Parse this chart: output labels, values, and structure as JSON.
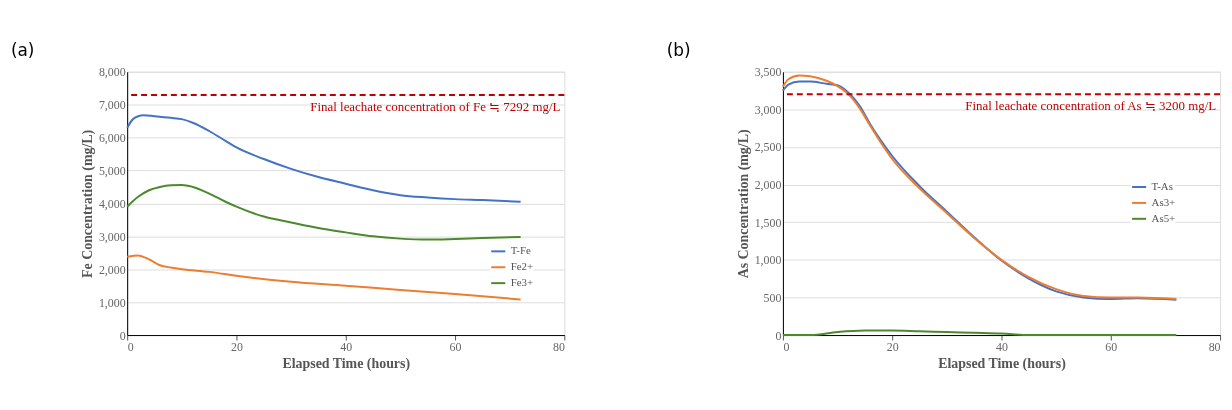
{
  "chart_data": [
    {
      "type": "line",
      "title": "(a)",
      "xlabel": "Elapsed Time (hours)",
      "ylabel": "Fe Concentration (mg/L)",
      "xlim": [
        0,
        80
      ],
      "xticks": [
        0,
        20,
        40,
        60,
        80
      ],
      "ylim": [
        0,
        8000
      ],
      "yticks": [
        0,
        {
          "value": 1000,
          "label": "1,000"
        },
        {
          "value": 2000,
          "label": "2,000"
        },
        {
          "value": 3000,
          "label": "3,000"
        },
        {
          "value": 4000,
          "label": "4,000"
        },
        {
          "value": 5000,
          "label": "5,000"
        },
        {
          "value": 6000,
          "label": "6,000"
        },
        {
          "value": 7000,
          "label": "7,000"
        },
        {
          "value": 8000,
          "label": "8,000"
        }
      ],
      "grid": "y",
      "legend": "bottom right",
      "marker": "none",
      "line_style": "solid",
      "ref_lines": [
        {
          "axis": "y",
          "value": 7292,
          "label": "Final leachate concentration of Fe ≒ 7292 mg/L",
          "color": "#c00000",
          "line_style": "dashed"
        }
      ],
      "series": [
        {
          "name": "T-Fe",
          "color": "#4472c4",
          "x": [
            0,
            1,
            2,
            3,
            5,
            8,
            10,
            12,
            15,
            18,
            20,
            25,
            30,
            35,
            40,
            45,
            50,
            55,
            60,
            65,
            72
          ],
          "values": [
            6300,
            6550,
            6650,
            6680,
            6650,
            6600,
            6560,
            6450,
            6200,
            5900,
            5700,
            5350,
            5050,
            4800,
            4600,
            4400,
            4250,
            4180,
            4130,
            4100,
            4050
          ]
        },
        {
          "name": "Fe2+",
          "color": "#ed7d31",
          "x": [
            0,
            2,
            4,
            6,
            8,
            10,
            15,
            20,
            30,
            40,
            50,
            60,
            72
          ],
          "values": [
            2380,
            2420,
            2300,
            2120,
            2050,
            2000,
            1920,
            1800,
            1620,
            1500,
            1370,
            1250,
            1080
          ]
        },
        {
          "name": "Fe3+",
          "color": "#4a8a2c",
          "x": [
            0,
            2,
            4,
            6,
            8,
            10,
            12,
            15,
            18,
            20,
            25,
            30,
            35,
            40,
            45,
            50,
            55,
            60,
            65,
            72
          ],
          "values": [
            3900,
            4200,
            4400,
            4500,
            4550,
            4560,
            4500,
            4300,
            4050,
            3900,
            3600,
            3420,
            3250,
            3120,
            3000,
            2930,
            2900,
            2920,
            2950,
            2980
          ]
        }
      ]
    },
    {
      "type": "line",
      "title": "(b)",
      "xlabel": "Elapsed Time (hours)",
      "ylabel": "As Concentration (mg/L)",
      "xlim": [
        0,
        80
      ],
      "xticks": [
        0,
        20,
        40,
        60,
        80
      ],
      "ylim": [
        0,
        3500
      ],
      "yticks": [
        0,
        500,
        {
          "value": 1000,
          "label": "1,000"
        },
        {
          "value": 1500,
          "label": "1,500"
        },
        {
          "value": 2000,
          "label": "2,000"
        },
        {
          "value": 2500,
          "label": "2,500"
        },
        {
          "value": 3000,
          "label": "3,000"
        },
        {
          "value": 3500,
          "label": "3,500"
        }
      ],
      "grid": "y",
      "legend": "right",
      "marker": "none",
      "line_style": "solid",
      "ref_lines": [
        {
          "axis": "y",
          "value": 3200,
          "label": "Final leachate concentration of As ≒ 3200 mg/L",
          "color": "#c00000",
          "line_style": "dashed"
        }
      ],
      "series": [
        {
          "name": "T-As",
          "color": "#4472c4",
          "x": [
            0,
            1,
            3,
            5,
            8,
            10,
            12,
            14,
            16,
            18,
            20,
            25,
            30,
            35,
            40,
            45,
            50,
            55,
            60,
            65,
            72
          ],
          "values": [
            3250,
            3330,
            3370,
            3370,
            3340,
            3320,
            3220,
            3050,
            2800,
            2580,
            2380,
            1980,
            1640,
            1300,
            990,
            750,
            580,
            500,
            480,
            490,
            470
          ]
        },
        {
          "name": "As3+",
          "color": "#ed7d31",
          "x": [
            0,
            1,
            3,
            5,
            8,
            10,
            12,
            14,
            16,
            18,
            20,
            25,
            30,
            35,
            40,
            45,
            50,
            55,
            60,
            65,
            72
          ],
          "values": [
            3300,
            3400,
            3450,
            3440,
            3380,
            3310,
            3200,
            3020,
            2780,
            2550,
            2340,
            1950,
            1620,
            1290,
            1000,
            770,
            610,
            520,
            500,
            500,
            480
          ]
        },
        {
          "name": "As5+",
          "color": "#4a8a2c",
          "x": [
            0,
            5,
            10,
            15,
            20,
            25,
            30,
            35,
            40,
            45,
            50,
            60,
            72
          ],
          "values": [
            0,
            0,
            40,
            60,
            60,
            50,
            40,
            30,
            20,
            0,
            0,
            0,
            0
          ]
        }
      ]
    }
  ]
}
